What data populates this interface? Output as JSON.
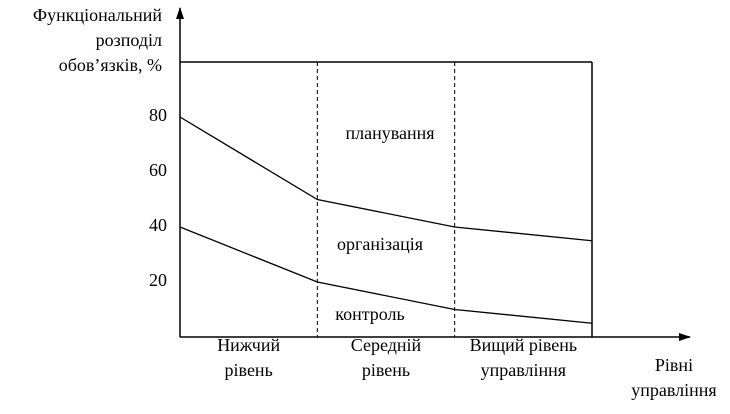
{
  "chart_data": {
    "type": "line",
    "y_axis_label": [
      "Функціональний",
      "розподіл",
      "обов’язків, %"
    ],
    "x_axis_label": [
      "Рівні",
      "управління"
    ],
    "bands": [
      [
        "Нижчий",
        "рівень"
      ],
      [
        "Середній",
        "рівень"
      ],
      [
        "Вищий рівень",
        "управління"
      ]
    ],
    "x": [
      0,
      1,
      2,
      3
    ],
    "xlim": [
      0,
      3
    ],
    "xticks": [
      1,
      2
    ],
    "ylim": [
      0,
      100
    ],
    "yticks": [
      20,
      40,
      60,
      80
    ],
    "series": [
      {
        "color": "#000000",
        "values": [
          80,
          50,
          40,
          35
        ]
      },
      {
        "color": "#000000",
        "values": [
          40,
          20,
          10,
          5
        ]
      }
    ],
    "annotations": [
      "планування",
      "організація",
      "контроль"
    ]
  }
}
